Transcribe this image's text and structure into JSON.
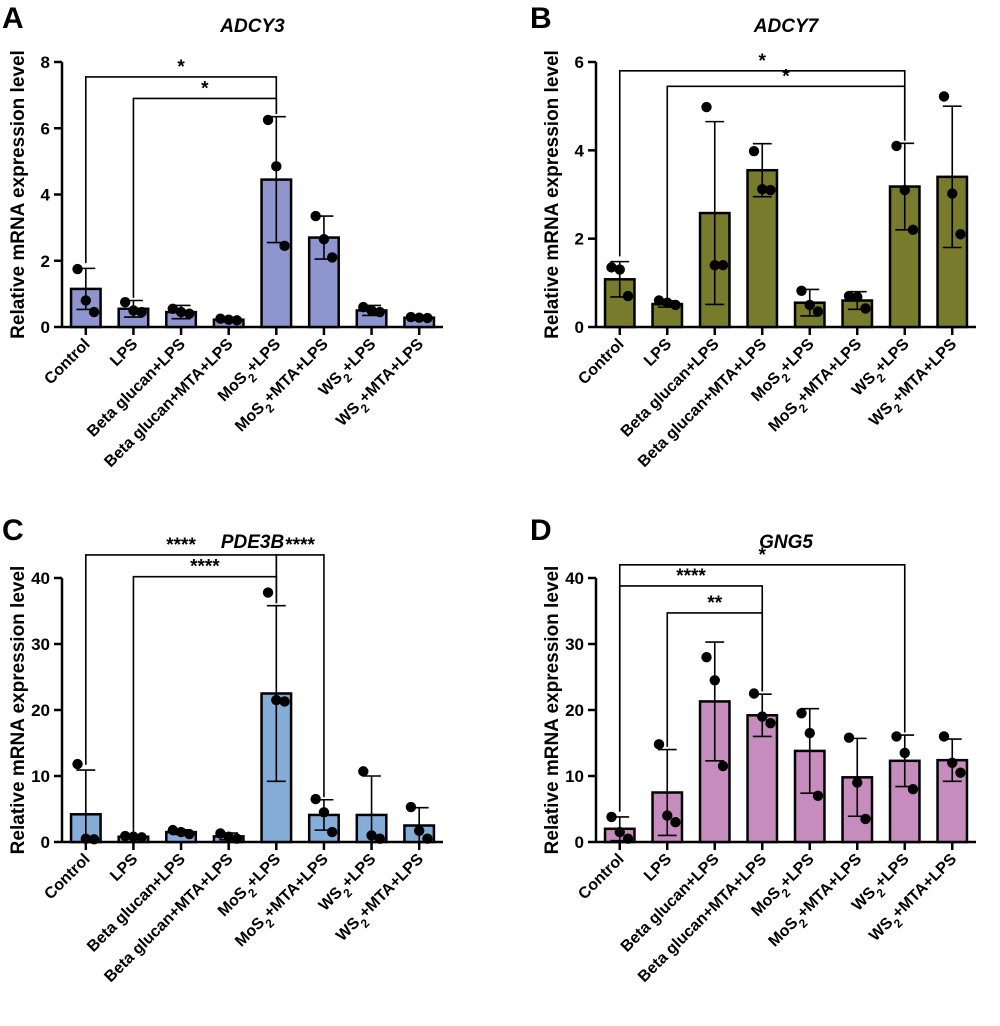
{
  "chart_data": [
    {
      "type": "bar",
      "panel": "A",
      "title": "ADCY3",
      "ylabel": "Relative mRNA expression level",
      "ylim": [
        0,
        8
      ],
      "yticks": [
        "0",
        "2",
        "4",
        "6",
        "8"
      ],
      "color": "#8f96cf",
      "categories": [
        "Control",
        "LPS",
        "Beta glucan+LPS",
        "Beta glucan+MTA+LPS",
        "MoS2+LPS",
        "MoS2+MTA+LPS",
        "WS2+LPS",
        "WS2+MTA+LPS"
      ],
      "values": [
        1.15,
        0.55,
        0.45,
        0.22,
        4.45,
        2.7,
        0.5,
        0.28
      ],
      "errors": [
        0.62,
        0.25,
        0.2,
        0.07,
        1.9,
        0.65,
        0.15,
        0.07
      ],
      "points": [
        [
          1.75,
          0.8,
          0.45
        ],
        [
          0.75,
          0.5,
          0.45
        ],
        [
          0.55,
          0.45,
          0.4
        ],
        [
          0.25,
          0.22,
          0.2
        ],
        [
          6.25,
          4.85,
          2.45
        ],
        [
          3.35,
          2.65,
          2.1
        ],
        [
          0.6,
          0.5,
          0.45
        ],
        [
          0.3,
          0.28,
          0.27
        ]
      ],
      "significance": [
        {
          "from": 0,
          "to": 4,
          "label": "*",
          "y": 7.55
        },
        {
          "from": 1,
          "to": 4,
          "label": "*",
          "y": 6.9
        }
      ]
    },
    {
      "type": "bar",
      "panel": "B",
      "title": "ADCY7",
      "ylabel": "Relative mRNA expression level",
      "ylim": [
        0,
        6
      ],
      "yticks": [
        "0",
        "2",
        "4",
        "6"
      ],
      "color": "#787a2c",
      "categories": [
        "Control",
        "LPS",
        "Beta glucan+LPS",
        "Beta glucan+MTA+LPS",
        "MoS2+LPS",
        "MoS2+MTA+LPS",
        "WS2+LPS",
        "WS2+MTA+LPS"
      ],
      "values": [
        1.08,
        0.52,
        2.58,
        3.55,
        0.55,
        0.6,
        3.18,
        3.4
      ],
      "errors": [
        0.4,
        0.07,
        2.07,
        0.6,
        0.3,
        0.2,
        0.98,
        1.6
      ],
      "points": [
        [
          1.35,
          1.3,
          0.7
        ],
        [
          0.6,
          0.55,
          0.5
        ],
        [
          4.98,
          1.4,
          1.4
        ],
        [
          3.98,
          3.12,
          3.1
        ],
        [
          0.82,
          0.5,
          0.35
        ],
        [
          0.7,
          0.68,
          0.42
        ],
        [
          4.1,
          3.1,
          2.2
        ],
        [
          5.22,
          3.02,
          2.1
        ]
      ],
      "significance": [
        {
          "from": 0,
          "to": 6,
          "label": "*",
          "y": 5.8
        },
        {
          "from": 1,
          "to": 6,
          "label": "*",
          "y": 5.45
        }
      ]
    },
    {
      "type": "bar",
      "panel": "C",
      "title": "PDE3B",
      "ylabel": "Relative mRNA expression level",
      "ylim": [
        0,
        40
      ],
      "yticks": [
        "0",
        "10",
        "20",
        "30",
        "40"
      ],
      "color": "#86acd8",
      "categories": [
        "Control",
        "LPS",
        "Beta glucan+LPS",
        "Beta glucan+MTA+LPS",
        "MoS2+LPS",
        "MoS2+MTA+LPS",
        "WS2+LPS",
        "WS2+MTA+LPS"
      ],
      "values": [
        4.2,
        0.8,
        1.5,
        0.85,
        22.5,
        4.1,
        4.1,
        2.5
      ],
      "errors": [
        6.7,
        0.15,
        0.35,
        0.5,
        13.3,
        2.3,
        5.9,
        2.7
      ],
      "points": [
        [
          11.8,
          0.5,
          0.4
        ],
        [
          0.9,
          0.8,
          0.7
        ],
        [
          1.8,
          1.5,
          1.2
        ],
        [
          1.3,
          0.8,
          0.5
        ],
        [
          37.8,
          21.5,
          21.3
        ],
        [
          6.5,
          4.5,
          1.5
        ],
        [
          10.7,
          1.0,
          0.5
        ],
        [
          5.3,
          1.7,
          0.5
        ]
      ],
      "significance": [
        {
          "from": 0,
          "to": 4,
          "label": "****",
          "y": 43.5
        },
        {
          "from": 1,
          "to": 4,
          "label": "****",
          "y": 40.2
        },
        {
          "from": 4,
          "to": 5,
          "label": "****",
          "y": 43.5
        }
      ]
    },
    {
      "type": "bar",
      "panel": "D",
      "title": "GNG5",
      "ylabel": "Relative mRNA expression level",
      "ylim": [
        0,
        40
      ],
      "yticks": [
        "0",
        "10",
        "20",
        "30",
        "40"
      ],
      "color": "#c68cbd",
      "categories": [
        "Control",
        "LPS",
        "Beta glucan+LPS",
        "Beta glucan+MTA+LPS",
        "MoS2+LPS",
        "MoS2+MTA+LPS",
        "WS2+LPS",
        "WS2+MTA+LPS"
      ],
      "values": [
        2.0,
        7.5,
        21.3,
        19.2,
        13.8,
        9.8,
        12.3,
        12.4
      ],
      "errors": [
        1.8,
        6.5,
        9.0,
        3.2,
        6.4,
        5.9,
        3.9,
        3.2
      ],
      "points": [
        [
          3.8,
          1.5,
          0.5
        ],
        [
          14.8,
          4.0,
          3.0
        ],
        [
          28.0,
          24.5,
          11.5
        ],
        [
          22.5,
          19.0,
          18.0
        ],
        [
          19.5,
          16.5,
          7.0
        ],
        [
          15.8,
          9.0,
          3.5
        ],
        [
          16.0,
          13.5,
          8.0
        ],
        [
          16.0,
          12.0,
          10.5
        ]
      ],
      "significance": [
        {
          "from": 0,
          "to": 6,
          "label": "*",
          "y": 42.0
        },
        {
          "from": 0,
          "to": 3,
          "label": "****",
          "y": 38.8
        },
        {
          "from": 1,
          "to": 3,
          "label": "**",
          "y": 34.7
        }
      ]
    }
  ]
}
